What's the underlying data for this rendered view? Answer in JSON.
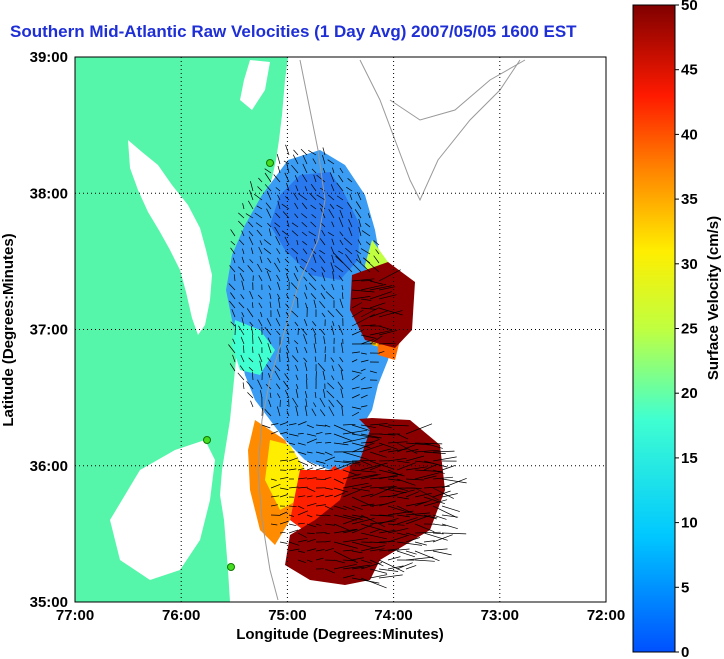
{
  "title": "Southern Mid-Atlantic Raw Velocities (1 Day Avg) 2007/05/05 1600 EST",
  "x_axis": {
    "label": "Longitude (Degrees:Minutes)",
    "ticks": [
      "77:00",
      "76:00",
      "75:00",
      "74:00",
      "73:00",
      "72:00"
    ]
  },
  "y_axis": {
    "label": "Latitude (Degrees:Minutes)",
    "ticks": [
      "39:00",
      "38:00",
      "37:00",
      "36:00",
      "35:00"
    ]
  },
  "colorbar": {
    "label": "Surface Velocity (cm/s)",
    "ticks": [
      "50",
      "45",
      "40",
      "35",
      "30",
      "25",
      "20",
      "15",
      "10",
      "5",
      "0"
    ],
    "min": 0,
    "max": 50
  },
  "colors": {
    "land": "#55f5aa",
    "title": "#1f2fd6",
    "grid": "#000000"
  }
}
